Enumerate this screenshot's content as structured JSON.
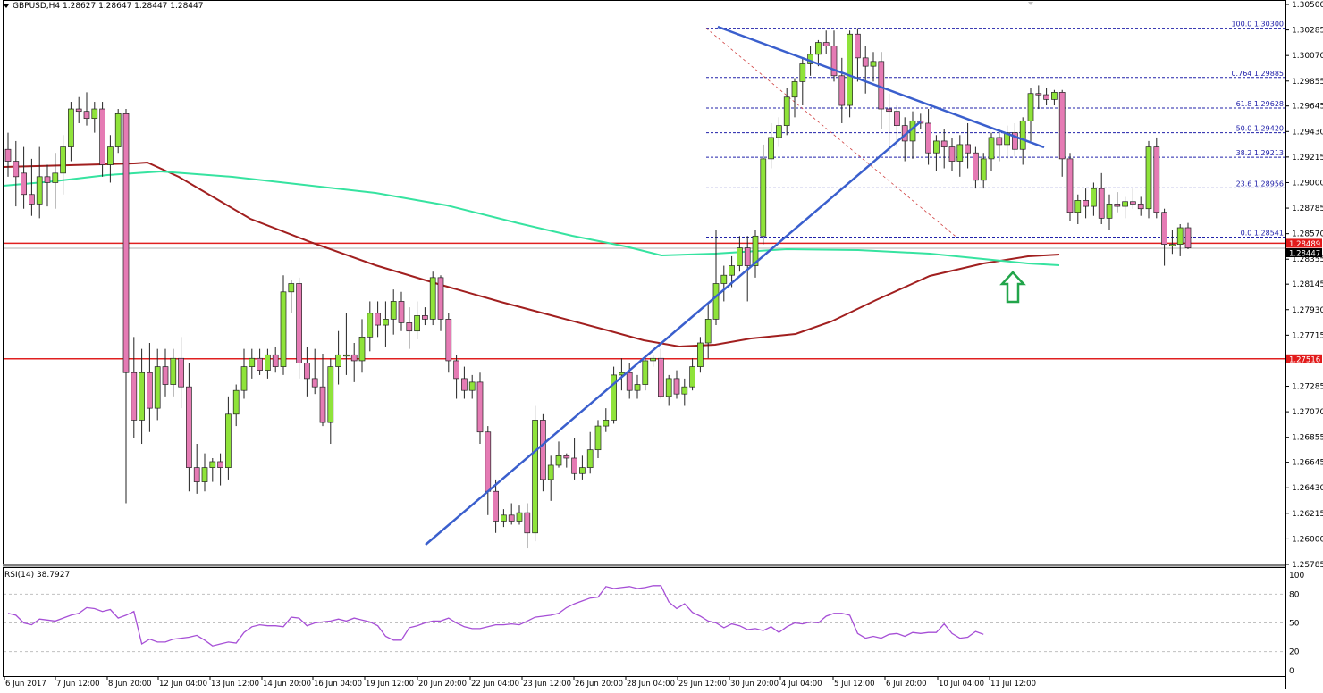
{
  "header": {
    "symbol_line": "GBPUSD,H4  1.28627 1.28647 1.28447 1.28447"
  },
  "rsi": {
    "label": "RSI(14) 38.7927",
    "levels": [
      "100",
      "80",
      "50",
      "20",
      "0"
    ]
  },
  "colors": {
    "bull": "#8fe33a",
    "bear": "#e57bb4",
    "ma_fast": "#a11f1f",
    "ma_slow": "#36e3a0",
    "trendline": "#3a5fcd",
    "fib": "#2222aa",
    "hline": "#e02020",
    "rsi_line": "#a64fd6",
    "arrow": "#22a54a"
  },
  "chart_data": {
    "type": "candlestick",
    "title": "GBPUSD,H4",
    "ohlc_header": {
      "open": 1.28627,
      "high": 1.28647,
      "low": 1.28447,
      "close": 1.28447
    },
    "price_axis_ticks": [
      "1.30500",
      "1.30285",
      "1.30070",
      "1.29855",
      "1.29645",
      "1.29430",
      "1.29215",
      "1.29000",
      "1.28785",
      "1.28570",
      "1.28355",
      "1.28145",
      "1.27930",
      "1.27715",
      "1.27285",
      "1.27070",
      "1.26855",
      "1.26645",
      "1.26430",
      "1.26215",
      "1.26000",
      "1.25785"
    ],
    "price_labels": {
      "current_bid": "1.28489",
      "current_close": "1.28447",
      "support": "1.27516"
    },
    "time_axis_ticks": [
      "6 Jun 2017",
      "7 Jun 12:00",
      "8 Jun 20:00",
      "12 Jun 04:00",
      "13 Jun 12:00",
      "14 Jun 20:00",
      "16 Jun 04:00",
      "19 Jun 12:00",
      "20 Jun 20:00",
      "22 Jun 04:00",
      "23 Jun 12:00",
      "26 Jun 20:00",
      "28 Jun 04:00",
      "29 Jun 12:00",
      "30 Jun 20:00",
      "4 Jul 04:00",
      "5 Jul 12:00",
      "6 Jul 20:00",
      "10 Jul 04:00",
      "11 Jul 12:00"
    ],
    "fibonacci": [
      {
        "label": "100.0 1.30300",
        "price": 1.303
      },
      {
        "label": "0.764 1.29885",
        "price": 1.29885
      },
      {
        "label": "61.8 1.29628",
        "price": 1.29628
      },
      {
        "label": "50.0 1.29420",
        "price": 1.2942
      },
      {
        "label": "38.2 1.29213",
        "price": 1.29213
      },
      {
        "label": "23.6 1.28956",
        "price": 1.28956
      },
      {
        "label": "0.0 1.28541",
        "price": 1.28541
      }
    ],
    "horizontal_lines": [
      1.28489,
      1.27516
    ],
    "indicators": [
      "SMA (red, 100)",
      "SMA (green, 200)",
      "RSI(14)"
    ],
    "rsi_value": 38.7927,
    "rsi_levels": [
      80,
      50,
      20
    ],
    "annotations": [
      "Rising trendline from 20 Jun low",
      "Falling trendline from 29 Jun high",
      "Green up arrow at 11 Jul near SMAs"
    ],
    "candles": [
      [
        1.2928,
        1.2942,
        1.2905,
        1.2918
      ],
      [
        1.2918,
        1.2935,
        1.288,
        1.2905
      ],
      [
        1.2908,
        1.293,
        1.2878,
        1.289
      ],
      [
        1.289,
        1.292,
        1.2872,
        1.2882
      ],
      [
        1.2882,
        1.293,
        1.287,
        1.2905
      ],
      [
        1.2905,
        1.2915,
        1.288,
        1.29
      ],
      [
        1.29,
        1.2925,
        1.2878,
        1.2908
      ],
      [
        1.2908,
        1.294,
        1.289,
        1.293
      ],
      [
        1.293,
        1.2968,
        1.2918,
        1.2962
      ],
      [
        1.2962,
        1.2972,
        1.295,
        1.296
      ],
      [
        1.296,
        1.2976,
        1.2948,
        1.2954
      ],
      [
        1.2954,
        1.2968,
        1.2942,
        1.2962
      ],
      [
        1.2962,
        1.2968,
        1.2905,
        1.2915
      ],
      [
        1.2915,
        1.294,
        1.29,
        1.293
      ],
      [
        1.293,
        1.2962,
        1.2925,
        1.2958
      ],
      [
        1.2958,
        1.2962,
        1.263,
        1.274
      ],
      [
        1.274,
        1.277,
        1.2685,
        1.27
      ],
      [
        1.27,
        1.276,
        1.268,
        1.274
      ],
      [
        1.274,
        1.2765,
        1.269,
        1.271
      ],
      [
        1.271,
        1.276,
        1.27,
        1.2745
      ],
      [
        1.2745,
        1.276,
        1.272,
        1.273
      ],
      [
        1.273,
        1.276,
        1.272,
        1.2752
      ],
      [
        1.2752,
        1.277,
        1.271,
        1.2728
      ],
      [
        1.2728,
        1.2748,
        1.264,
        1.266
      ],
      [
        1.266,
        1.268,
        1.2638,
        1.2648
      ],
      [
        1.2648,
        1.2672,
        1.264,
        1.266
      ],
      [
        1.266,
        1.2668,
        1.2648,
        1.2665
      ],
      [
        1.2665,
        1.2672,
        1.2645,
        1.266
      ],
      [
        1.266,
        1.272,
        1.265,
        1.2705
      ],
      [
        1.2705,
        1.273,
        1.2695,
        1.2725
      ],
      [
        1.2725,
        1.276,
        1.2718,
        1.2745
      ],
      [
        1.2745,
        1.276,
        1.2735,
        1.2752
      ],
      [
        1.2752,
        1.276,
        1.2738,
        1.2742
      ],
      [
        1.2742,
        1.276,
        1.2735,
        1.2755
      ],
      [
        1.2755,
        1.2762,
        1.274,
        1.2745
      ],
      [
        1.2745,
        1.2822,
        1.2738,
        1.2808
      ],
      [
        1.2808,
        1.2818,
        1.279,
        1.2815
      ],
      [
        1.2815,
        1.282,
        1.2735,
        1.2748
      ],
      [
        1.2748,
        1.2762,
        1.272,
        1.2735
      ],
      [
        1.2735,
        1.276,
        1.2722,
        1.2728
      ],
      [
        1.2728,
        1.2756,
        1.2695,
        1.2698
      ],
      [
        1.2698,
        1.2752,
        1.268,
        1.2745
      ],
      [
        1.2745,
        1.2775,
        1.273,
        1.2755
      ],
      [
        1.2755,
        1.279,
        1.2738,
        1.2755
      ],
      [
        1.2755,
        1.2765,
        1.2732,
        1.275
      ],
      [
        1.275,
        1.2785,
        1.274,
        1.277
      ],
      [
        1.277,
        1.28,
        1.2758,
        1.279
      ],
      [
        1.279,
        1.28,
        1.277,
        1.278
      ],
      [
        1.278,
        1.28,
        1.2762,
        1.2785
      ],
      [
        1.2785,
        1.281,
        1.2772,
        1.28
      ],
      [
        1.28,
        1.2808,
        1.2775,
        1.2782
      ],
      [
        1.2782,
        1.2795,
        1.276,
        1.2775
      ],
      [
        1.2775,
        1.28,
        1.2768,
        1.2788
      ],
      [
        1.2788,
        1.2795,
        1.278,
        1.2785
      ],
      [
        1.2785,
        1.2825,
        1.278,
        1.282
      ],
      [
        1.282,
        1.2822,
        1.2775,
        1.2785
      ],
      [
        1.2785,
        1.279,
        1.274,
        1.275
      ],
      [
        1.275,
        1.2755,
        1.2718,
        1.2735
      ],
      [
        1.2735,
        1.2745,
        1.2718,
        1.2725
      ],
      [
        1.2725,
        1.2738,
        1.2718,
        1.2732
      ],
      [
        1.2732,
        1.274,
        1.268,
        1.269
      ],
      [
        1.269,
        1.2695,
        1.262,
        1.264
      ],
      [
        1.264,
        1.265,
        1.2605,
        1.2615
      ],
      [
        1.2615,
        1.2625,
        1.261,
        1.262
      ],
      [
        1.262,
        1.263,
        1.2612,
        1.2615
      ],
      [
        1.2615,
        1.2628,
        1.2612,
        1.2622
      ],
      [
        1.2622,
        1.263,
        1.2592,
        1.2605
      ],
      [
        1.2605,
        1.2712,
        1.2598,
        1.27
      ],
      [
        1.27,
        1.2705,
        1.264,
        1.265
      ],
      [
        1.265,
        1.267,
        1.2632,
        1.2662
      ],
      [
        1.2662,
        1.2682,
        1.266,
        1.267
      ],
      [
        1.267,
        1.2672,
        1.266,
        1.2668
      ],
      [
        1.2668,
        1.2685,
        1.265,
        1.2655
      ],
      [
        1.2655,
        1.267,
        1.265,
        1.266
      ],
      [
        1.266,
        1.269,
        1.2655,
        1.2675
      ],
      [
        1.2675,
        1.27,
        1.2668,
        1.2695
      ],
      [
        1.2695,
        1.271,
        1.269,
        1.27
      ],
      [
        1.27,
        1.2745,
        1.2697,
        1.2738
      ],
      [
        1.2738,
        1.2752,
        1.2725,
        1.274
      ],
      [
        1.274,
        1.2748,
        1.2718,
        1.2725
      ],
      [
        1.2725,
        1.2738,
        1.2718,
        1.273
      ],
      [
        1.273,
        1.2755,
        1.2725,
        1.275
      ],
      [
        1.275,
        1.2755,
        1.2745,
        1.2752
      ],
      [
        1.2752,
        1.276,
        1.2718,
        1.272
      ],
      [
        1.272,
        1.2738,
        1.2712,
        1.2735
      ],
      [
        1.2735,
        1.2742,
        1.2718,
        1.2722
      ],
      [
        1.2722,
        1.2735,
        1.2712,
        1.2728
      ],
      [
        1.2728,
        1.2752,
        1.2725,
        1.2745
      ],
      [
        1.2745,
        1.277,
        1.274,
        1.2765
      ],
      [
        1.2765,
        1.2798,
        1.2752,
        1.2785
      ],
      [
        1.2785,
        1.286,
        1.278,
        1.2815
      ],
      [
        1.2815,
        1.283,
        1.28,
        1.2822
      ],
      [
        1.2822,
        1.2838,
        1.2812,
        1.283
      ],
      [
        1.283,
        1.2855,
        1.2825,
        1.2845
      ],
      [
        1.2845,
        1.2855,
        1.28,
        1.283
      ],
      [
        1.283,
        1.286,
        1.282,
        1.2855
      ],
      [
        1.2855,
        1.2932,
        1.2848,
        1.292
      ],
      [
        1.292,
        1.295,
        1.2912,
        1.2938
      ],
      [
        1.2938,
        1.2955,
        1.293,
        1.2948
      ],
      [
        1.2948,
        1.298,
        1.294,
        1.2972
      ],
      [
        1.2972,
        1.2988,
        1.2955,
        1.2985
      ],
      [
        1.2985,
        1.3005,
        1.2965,
        1.3
      ],
      [
        1.3,
        1.3015,
        1.299,
        1.3008
      ],
      [
        1.3008,
        1.302,
        1.2998,
        1.3018
      ],
      [
        1.3018,
        1.3028,
        1.3008,
        1.3015
      ],
      [
        1.3015,
        1.3028,
        1.2985,
        1.299
      ],
      [
        1.299,
        1.3005,
        1.295,
        1.2965
      ],
      [
        1.2965,
        1.3028,
        1.2955,
        1.3025
      ],
      [
        1.3025,
        1.303,
        1.2985,
        1.3005
      ],
      [
        1.3005,
        1.3015,
        1.2975,
        1.2998
      ],
      [
        1.2998,
        1.301,
        1.2985,
        1.3002
      ],
      [
        1.3002,
        1.301,
        1.2945,
        1.2962
      ],
      [
        1.2962,
        1.2975,
        1.2925,
        1.296
      ],
      [
        1.296,
        1.2965,
        1.293,
        1.2948
      ],
      [
        1.2948,
        1.2955,
        1.2918,
        1.2935
      ],
      [
        1.2935,
        1.296,
        1.292,
        1.2952
      ],
      [
        1.2952,
        1.2958,
        1.2945,
        1.295
      ],
      [
        1.295,
        1.2962,
        1.2915,
        1.2925
      ],
      [
        1.2925,
        1.294,
        1.291,
        1.2935
      ],
      [
        1.2935,
        1.2945,
        1.2912,
        1.293
      ],
      [
        1.293,
        1.2938,
        1.291,
        1.2918
      ],
      [
        1.2918,
        1.294,
        1.2905,
        1.2932
      ],
      [
        1.2932,
        1.295,
        1.2912,
        1.2925
      ],
      [
        1.2925,
        1.293,
        1.2895,
        1.2902
      ],
      [
        1.2902,
        1.2925,
        1.2895,
        1.292
      ],
      [
        1.292,
        1.2942,
        1.291,
        1.2938
      ],
      [
        1.2938,
        1.2945,
        1.2918,
        1.2932
      ],
      [
        1.2932,
        1.2948,
        1.292,
        1.2942
      ],
      [
        1.2942,
        1.295,
        1.2922,
        1.2928
      ],
      [
        1.2928,
        1.2955,
        1.2915,
        1.2952
      ],
      [
        1.2952,
        1.298,
        1.2935,
        1.2975
      ],
      [
        1.2975,
        1.2982,
        1.2962,
        1.2974
      ],
      [
        1.2974,
        1.298,
        1.2965,
        1.297
      ],
      [
        1.297,
        1.2978,
        1.2965,
        1.2976
      ],
      [
        1.2976,
        1.2978,
        1.2905,
        1.292
      ],
      [
        1.292,
        1.2925,
        1.2868,
        1.2875
      ],
      [
        1.2875,
        1.289,
        1.2865,
        1.2885
      ],
      [
        1.2885,
        1.2895,
        1.287,
        1.288
      ],
      [
        1.288,
        1.29,
        1.2872,
        1.2895
      ],
      [
        1.2895,
        1.2908,
        1.2865,
        1.287
      ],
      [
        1.287,
        1.289,
        1.286,
        1.2882
      ],
      [
        1.2882,
        1.2892,
        1.2875,
        1.288
      ],
      [
        1.288,
        1.2888,
        1.287,
        1.2884
      ],
      [
        1.2884,
        1.2895,
        1.2878,
        1.2882
      ],
      [
        1.2882,
        1.2888,
        1.2872,
        1.2878
      ],
      [
        1.2878,
        1.2935,
        1.287,
        1.293
      ],
      [
        1.293,
        1.2938,
        1.287,
        1.2875
      ],
      [
        1.2875,
        1.2878,
        1.283,
        1.2848
      ],
      [
        1.2848,
        1.286,
        1.284,
        1.2848
      ],
      [
        1.2848,
        1.2865,
        1.2838,
        1.2862
      ],
      [
        1.2862,
        1.2866,
        1.2844,
        1.2845
      ]
    ],
    "rsi_series": [
      60,
      58,
      50,
      48,
      54,
      53,
      52,
      55,
      58,
      60,
      66,
      65,
      62,
      64,
      55,
      58,
      62,
      28,
      33,
      30,
      30,
      33,
      34,
      35,
      37,
      32,
      26,
      28,
      30,
      29,
      40,
      46,
      48,
      47,
      47,
      46,
      56,
      55,
      47,
      50,
      51,
      52,
      54,
      52,
      55,
      53,
      51,
      47,
      36,
      32,
      32,
      45,
      47,
      50,
      52,
      52,
      55,
      50,
      46,
      44,
      44,
      46,
      48,
      48,
      49,
      48,
      52,
      56,
      57,
      58,
      60,
      66,
      70,
      73,
      76,
      77,
      88,
      86,
      87,
      88,
      86,
      87,
      89,
      89,
      72,
      65,
      70,
      61,
      57,
      52,
      50,
      45,
      49,
      47,
      43,
      44,
      42,
      46,
      40,
      46,
      50,
      49,
      51,
      50,
      57,
      60,
      60,
      58,
      39,
      34,
      36,
      34,
      38,
      39,
      36,
      40,
      39,
      40,
      40,
      49,
      39,
      34,
      35,
      41,
      38
    ]
  }
}
